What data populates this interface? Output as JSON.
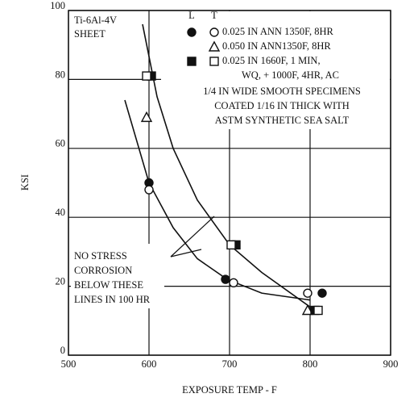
{
  "chart_data": {
    "type": "scatter",
    "title_lines": [
      "Ti-6Al-4V",
      "SHEET"
    ],
    "x_label": "EXPOSURE TEMP - F",
    "y_label": "KSI",
    "xlim": [
      500,
      900
    ],
    "xticks": [
      500,
      600,
      700,
      800,
      900
    ],
    "ylim": [
      0,
      100
    ],
    "yticks": [
      0,
      20,
      40,
      60,
      80,
      100
    ],
    "grid": true,
    "color": "#111111",
    "legend": {
      "headers": [
        "L",
        "T"
      ],
      "rows": [
        "0.025 IN   ANN 1350F, 8HR",
        "0.050 IN   ANN1350F, 8HR",
        "0.025 IN   1660F, 1 MIN,",
        "WQ, + 1000F, 4HR, AC"
      ]
    },
    "note": [
      "1/4 IN WIDE SMOOTH SPECIMENS",
      "COATED 1/16 IN THICK WITH",
      "ASTM SYNTHETIC SEA SALT"
    ],
    "annotation": [
      "NO STRESS",
      "CORROSION",
      "BELOW THESE",
      "LINES IN 100 HR"
    ],
    "series": [
      {
        "marker": "circle",
        "filled": true,
        "legend_row": 0,
        "x": [
          600,
          695,
          815
        ],
        "values": [
          50,
          22,
          18
        ]
      },
      {
        "marker": "circle",
        "filled": false,
        "legend_row": 0,
        "x": [
          600,
          705,
          797
        ],
        "values": [
          48,
          21,
          18
        ]
      },
      {
        "marker": "triangle",
        "filled": false,
        "legend_row": 1,
        "x": [
          597,
          797
        ],
        "values": [
          69,
          13
        ]
      },
      {
        "marker": "square",
        "filled": true,
        "legend_row": 2,
        "x": [
          603,
          708,
          806
        ],
        "values": [
          81,
          32,
          13
        ]
      },
      {
        "marker": "square",
        "filled": false,
        "legend_row": 2,
        "x": [
          597,
          702,
          810
        ],
        "values": [
          81,
          32,
          13
        ]
      }
    ],
    "curves": [
      {
        "x": [
          592,
          610,
          630,
          660,
          700,
          740,
          800
        ],
        "values": [
          96,
          75,
          60,
          45,
          32,
          24,
          14
        ]
      },
      {
        "x": [
          570,
          600,
          630,
          660,
          697,
          740,
          800
        ],
        "values": [
          74,
          50,
          37,
          28,
          22,
          18,
          16
        ]
      }
    ]
  }
}
